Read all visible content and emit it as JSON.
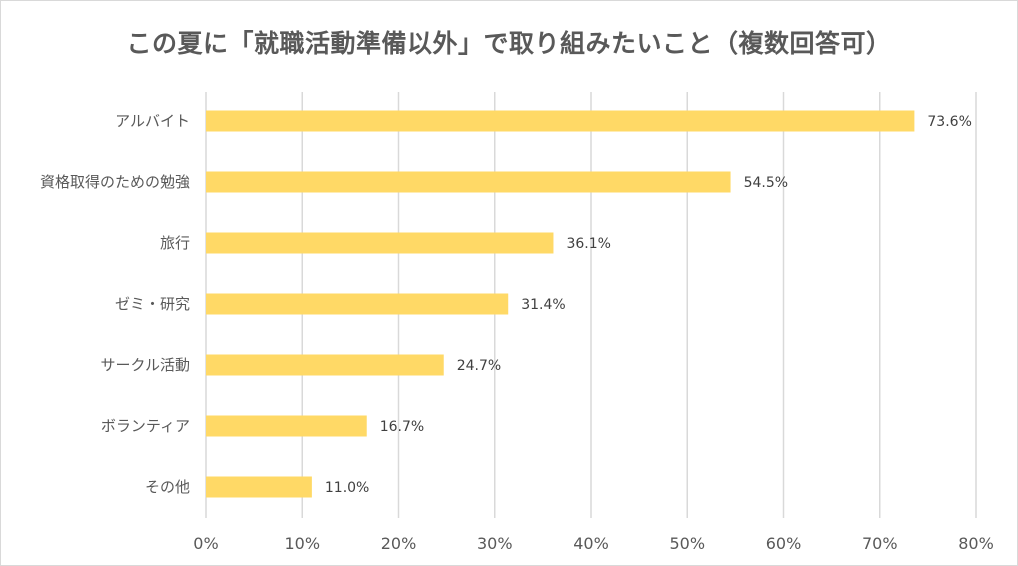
{
  "chart_data": {
    "type": "bar",
    "orientation": "horizontal",
    "title": "この夏に「就職活動準備以外」で取り組みたいこと（複数回答可）",
    "categories": [
      "アルバイト",
      "資格取得のための勉強",
      "旅行",
      "ゼミ・研究",
      "サークル活動",
      "ボランティア",
      "その他"
    ],
    "values": [
      73.6,
      54.5,
      36.1,
      31.4,
      24.7,
      16.7,
      11.0
    ],
    "data_labels": [
      "73.6%",
      "54.5%",
      "36.1%",
      "31.4%",
      "24.7%",
      "16.7%",
      "11.0%"
    ],
    "xlim": [
      0,
      80
    ],
    "xticks": [
      0,
      10,
      20,
      30,
      40,
      50,
      60,
      70,
      80
    ],
    "xtick_labels": [
      "0%",
      "10%",
      "20%",
      "30%",
      "40%",
      "50%",
      "60%",
      "70%",
      "80%"
    ],
    "xlabel": "",
    "ylabel": "",
    "grid": true,
    "legend": "none",
    "bar_color": "#FFD966",
    "grid_color": "#D9D9D9"
  }
}
